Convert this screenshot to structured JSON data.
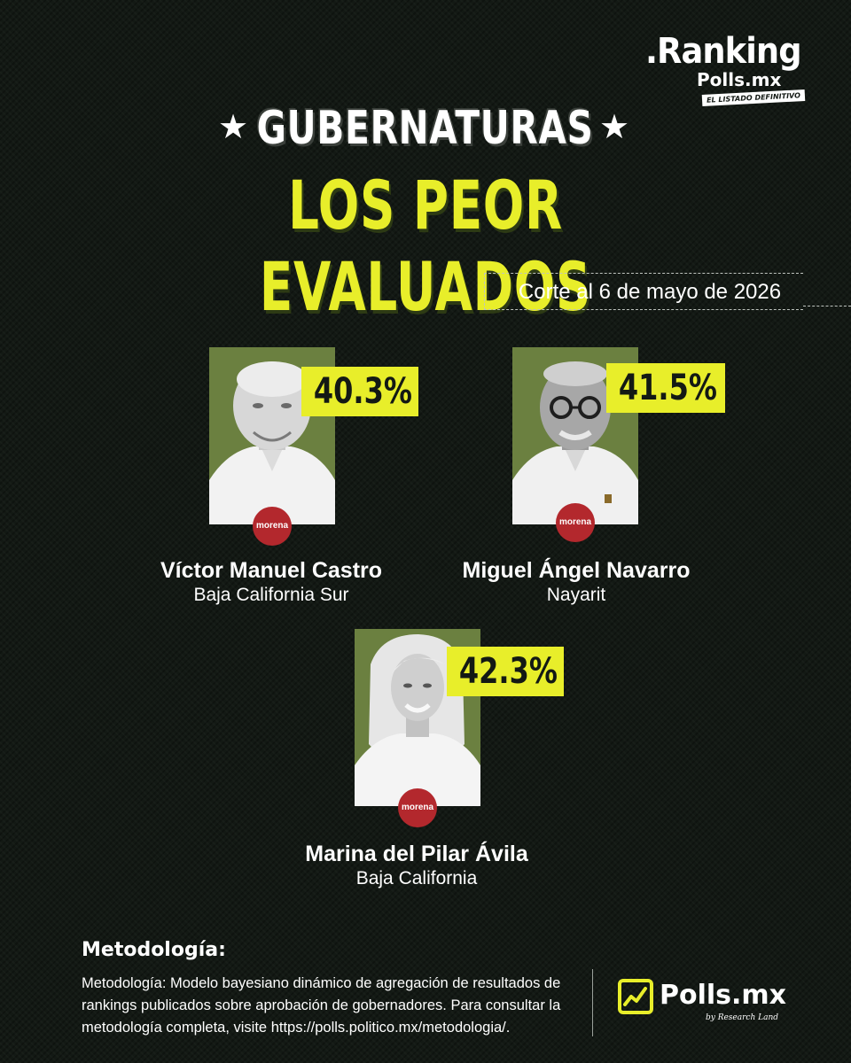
{
  "brand": {
    "ranking": ".Ranking",
    "polls": "Polls.mx",
    "tagline": "EL LISTADO DEFINITIVO"
  },
  "header": {
    "title": "GUBERNATURAS",
    "subtitle": "LOS PEOR EVALUADOS",
    "star": "★"
  },
  "cutoff": "Corte al 6 de mayo de 2026",
  "candidates": [
    {
      "name": "Víctor Manuel Castro",
      "state": "Baja California Sur",
      "approval": "40.3%",
      "party": "morena"
    },
    {
      "name": "Miguel Ángel Navarro",
      "state": "Nayarit",
      "approval": "41.5%",
      "party": "morena"
    },
    {
      "name": "Marina del Pilar Ávila",
      "state": "Baja California",
      "approval": "42.3%",
      "party": "morena"
    }
  ],
  "methodology": {
    "title": "Metodología:",
    "text": "Metodología: Modelo bayesiano dinámico de agregación de resultados de rankings publicados sobre aprobación de gobernadores. Para consultar la metodología completa, visite https://polls.politico.mx/metodologia/."
  },
  "footer": {
    "logo_name": "Polls.mx",
    "logo_sub": "by Research Land"
  },
  "colors": {
    "background": "#131914",
    "accent": "#e8ee2a",
    "photo_bg": "#6b8040",
    "party": "#b3282d"
  },
  "icons": {
    "footer_logo": "chart-line-icon",
    "star": "star-icon",
    "party_logo": "morena-logo-icon"
  }
}
